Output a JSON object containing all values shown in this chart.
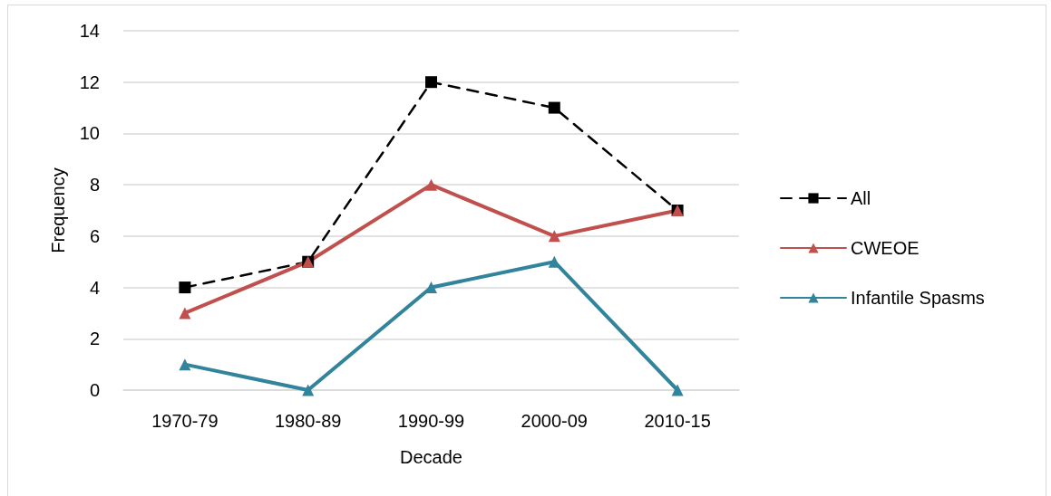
{
  "chart_data": {
    "type": "line",
    "xlabel": "Decade",
    "ylabel": "Frequency",
    "categories": [
      "1970-79",
      "1980-89",
      "1990-99",
      "2000-09",
      "2010-15"
    ],
    "series": [
      {
        "name": "All",
        "color": "#000000",
        "values": [
          4,
          5,
          12,
          11,
          7
        ],
        "marker": "square",
        "line_style": "dashed"
      },
      {
        "name": "CWEOE",
        "color": "#c0504d",
        "values": [
          3,
          5,
          8,
          6,
          7
        ],
        "marker": "triangle",
        "line_style": "solid"
      },
      {
        "name": "Infantile Spasms",
        "color": "#31849b",
        "values": [
          1,
          0,
          4,
          5,
          0
        ],
        "marker": "triangle",
        "line_style": "solid"
      }
    ],
    "ylim": [
      0,
      14
    ],
    "yticks": [
      0,
      2,
      4,
      6,
      8,
      10,
      12,
      14
    ],
    "grid": "y",
    "legend": "right"
  }
}
